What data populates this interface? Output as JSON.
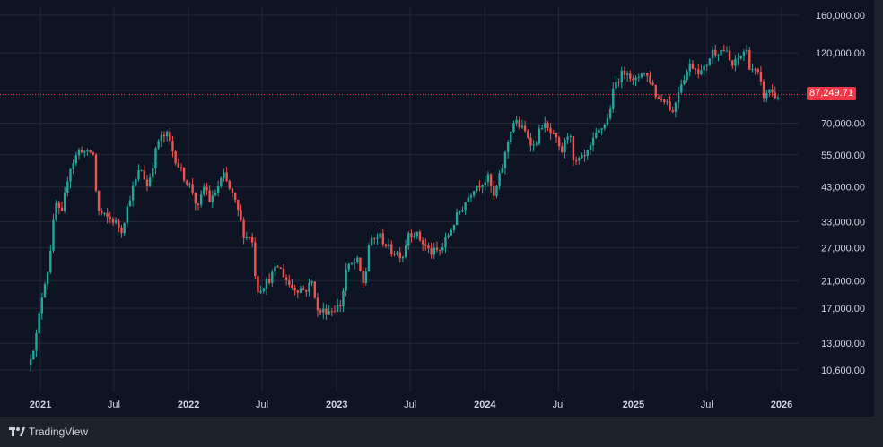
{
  "chart_data": {
    "type": "candlestick",
    "scale": "log",
    "grid": true,
    "colors": {
      "up": "#26a69a",
      "down": "#ef5350",
      "background": "#0f1424",
      "grid": "#232838",
      "text": "#d1d4dc",
      "price_line": "#f23645"
    },
    "y_ticks": [
      10600,
      13000,
      17000,
      21000,
      27000,
      33000,
      43000,
      55000,
      70000,
      90000,
      120000,
      160000
    ],
    "y_tick_labels": [
      "10,600.00",
      "13,000.00",
      "17,000.00",
      "21,000.00",
      "27,000.00",
      "33,000.00",
      "43,000.00",
      "55,000.00",
      "70,000.00",
      "",
      "120,000.00",
      "160,000.00"
    ],
    "x_ticks": [
      {
        "label": "2021",
        "date": "2021-01-01",
        "major": true
      },
      {
        "label": "Jul",
        "date": "2021-07-01",
        "major": false
      },
      {
        "label": "2022",
        "date": "2022-01-01",
        "major": true
      },
      {
        "label": "Jul",
        "date": "2022-07-01",
        "major": false
      },
      {
        "label": "2023",
        "date": "2023-01-01",
        "major": true
      },
      {
        "label": "Jul",
        "date": "2023-07-01",
        "major": false
      },
      {
        "label": "2024",
        "date": "2024-01-01",
        "major": true
      },
      {
        "label": "Jul",
        "date": "2024-07-01",
        "major": false
      },
      {
        "label": "2025",
        "date": "2025-01-01",
        "major": true
      },
      {
        "label": "Jul",
        "date": "2025-07-01",
        "major": false
      },
      {
        "label": "2026",
        "date": "2026-01-01",
        "major": true
      }
    ],
    "x_range": [
      "2020-12-01",
      "2026-01-15"
    ],
    "current_price": 87249.71,
    "current_price_label": "87,249.71",
    "price_series": [
      [
        "2020-12-01",
        11000
      ],
      [
        "2020-12-21",
        13500
      ],
      [
        "2021-01-08",
        20000
      ],
      [
        "2021-01-20",
        23000
      ],
      [
        "2021-02-08",
        38000
      ],
      [
        "2021-02-22",
        34000
      ],
      [
        "2021-03-12",
        49000
      ],
      [
        "2021-04-10",
        58000
      ],
      [
        "2021-04-26",
        55000
      ],
      [
        "2021-05-10",
        57000
      ],
      [
        "2021-05-22",
        36000
      ],
      [
        "2021-06-10",
        34000
      ],
      [
        "2021-06-28",
        33500
      ],
      [
        "2021-07-20",
        31000
      ],
      [
        "2021-08-10",
        40000
      ],
      [
        "2021-09-05",
        50000
      ],
      [
        "2021-09-22",
        43000
      ],
      [
        "2021-10-10",
        55000
      ],
      [
        "2021-10-20",
        62000
      ],
      [
        "2021-11-10",
        64000
      ],
      [
        "2021-11-26",
        55000
      ],
      [
        "2021-12-15",
        48000
      ],
      [
        "2022-01-10",
        42000
      ],
      [
        "2022-01-24",
        36000
      ],
      [
        "2022-02-10",
        44000
      ],
      [
        "2022-02-24",
        38000
      ],
      [
        "2022-03-28",
        47000
      ],
      [
        "2022-04-20",
        40000
      ],
      [
        "2022-05-05",
        35000
      ],
      [
        "2022-05-20",
        29000
      ],
      [
        "2022-06-05",
        30000
      ],
      [
        "2022-06-18",
        19500
      ],
      [
        "2022-07-10",
        20500
      ],
      [
        "2022-08-10",
        23500
      ],
      [
        "2022-09-10",
        20000
      ],
      [
        "2022-10-15",
        19500
      ],
      [
        "2022-11-05",
        21000
      ],
      [
        "2022-11-12",
        16500
      ],
      [
        "2022-12-20",
        16800
      ],
      [
        "2023-01-12",
        17500
      ],
      [
        "2023-01-24",
        22800
      ],
      [
        "2023-02-20",
        24500
      ],
      [
        "2023-03-10",
        20000
      ],
      [
        "2023-03-20",
        27500
      ],
      [
        "2023-04-15",
        29800
      ],
      [
        "2023-05-12",
        26500
      ],
      [
        "2023-06-15",
        25500
      ],
      [
        "2023-06-25",
        30500
      ],
      [
        "2023-07-15",
        30000
      ],
      [
        "2023-08-20",
        26000
      ],
      [
        "2023-09-15",
        26500
      ],
      [
        "2023-10-25",
        34500
      ],
      [
        "2023-12-05",
        43000
      ],
      [
        "2024-01-10",
        46000
      ],
      [
        "2024-01-23",
        39500
      ],
      [
        "2024-02-15",
        51500
      ],
      [
        "2024-03-05",
        67000
      ],
      [
        "2024-03-14",
        71500
      ],
      [
        "2024-04-15",
        64000
      ],
      [
        "2024-05-01",
        58500
      ],
      [
        "2024-05-22",
        70000
      ],
      [
        "2024-06-25",
        61000
      ],
      [
        "2024-07-06",
        55000
      ],
      [
        "2024-07-29",
        68000
      ],
      [
        "2024-08-05",
        51000
      ],
      [
        "2024-09-06",
        54000
      ],
      [
        "2024-10-01",
        63500
      ],
      [
        "2024-10-30",
        72500
      ],
      [
        "2024-11-13",
        90000
      ],
      [
        "2024-11-22",
        98000
      ],
      [
        "2024-12-17",
        106000
      ],
      [
        "2025-01-02",
        94000
      ],
      [
        "2025-01-22",
        105000
      ],
      [
        "2025-02-15",
        96000
      ],
      [
        "2025-03-01",
        84000
      ],
      [
        "2025-03-20",
        85000
      ],
      [
        "2025-04-08",
        76000
      ],
      [
        "2025-04-25",
        94000
      ],
      [
        "2025-05-22",
        110000
      ],
      [
        "2025-06-20",
        103000
      ],
      [
        "2025-07-14",
        121000
      ],
      [
        "2025-08-14",
        123000
      ],
      [
        "2025-09-01",
        108000
      ],
      [
        "2025-09-20",
        116000
      ],
      [
        "2025-10-06",
        124500
      ],
      [
        "2025-10-10",
        111000
      ],
      [
        "2025-11-04",
        101000
      ],
      [
        "2025-11-21",
        84000
      ],
      [
        "2025-12-02",
        91500
      ],
      [
        "2025-12-15",
        86000
      ],
      [
        "2025-12-25",
        87249.71
      ]
    ]
  },
  "watermark": {
    "brand": "TradingView"
  }
}
